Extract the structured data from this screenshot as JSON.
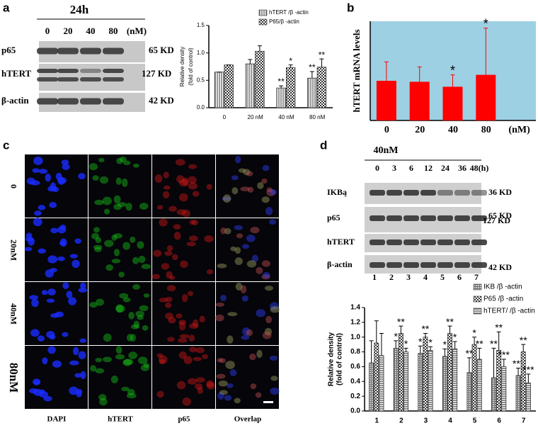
{
  "panel_labels": [
    "a",
    "b",
    "c",
    "d"
  ],
  "blot_a": {
    "time": "24h",
    "lanes": [
      "0",
      "20",
      "40",
      "80"
    ],
    "unit": "(nM)",
    "proteins": [
      "p65",
      "hTERT",
      "β-actin"
    ],
    "sizes": [
      "65 KD",
      "127 KD",
      "42 KD"
    ]
  },
  "imaging_c": {
    "rows": [
      "0",
      "20nM",
      "40nM",
      "80nM"
    ],
    "columns": [
      "DAPI",
      "hTERT",
      "p65",
      "Overlap"
    ]
  },
  "blot_d": {
    "dose": "40nM",
    "lanes": [
      "0",
      "3",
      "6",
      "12",
      "24",
      "36",
      "48(h)"
    ],
    "proteins": [
      "IKBą",
      "p65",
      "hTERT",
      "β-actin"
    ],
    "sizes": [
      "36 KD",
      "65 KD",
      "127 KD",
      "42 KD"
    ],
    "lane_numbers": [
      "1",
      "2",
      "3",
      "4",
      "5",
      "6",
      "7"
    ]
  },
  "chart_data": [
    {
      "type": "bar",
      "ylabel": [
        "Relative density",
        "(fold of control)"
      ],
      "categories": [
        "0",
        "20 nM",
        "40 nM",
        "80 nM"
      ],
      "ylim": [
        0,
        1.5
      ],
      "yticks": [
        {
          "value": 0,
          "label": "0.0"
        },
        {
          "value": 0.5,
          "label": "0.5"
        },
        {
          "value": 1,
          "label": "1.0"
        },
        {
          "value": 1.5,
          "label": "1.5"
        }
      ],
      "legend": "top-right",
      "series": [
        {
          "name": "hTERT /β -actin",
          "pattern": "vlines",
          "color": "#333333",
          "values": [
            0.65,
            0.8,
            0.36,
            0.54
          ],
          "errors": [
            0,
            0.08,
            0.04,
            0.12
          ],
          "annotations": [
            null,
            null,
            "**",
            "**"
          ]
        },
        {
          "name": "P65/β -actin",
          "pattern": "checker",
          "color": "#333333",
          "values": [
            0.78,
            1.03,
            0.73,
            0.74
          ],
          "errors": [
            0,
            0.1,
            0.05,
            0.15
          ],
          "annotations": [
            null,
            null,
            "*",
            "**"
          ]
        }
      ]
    },
    {
      "type": "bar",
      "ylabel": "hTERT mRNA  levels",
      "categories": [
        "0",
        "20",
        "40",
        "80"
      ],
      "unit": "(nM)",
      "ylim": [
        0,
        1
      ],
      "background": "#9dd0e3",
      "series": [
        {
          "color": "#ff0000",
          "values": [
            0.4,
            0.39,
            0.34,
            0.46
          ],
          "errors": [
            0.19,
            0.15,
            0.12,
            0.47
          ],
          "annotations": [
            null,
            null,
            "*",
            "*"
          ]
        }
      ]
    },
    {
      "type": "bar",
      "ylabel": [
        "Relative density",
        "(fold of control)"
      ],
      "categories": [
        "1",
        "2",
        "3",
        "4",
        "5",
        "6",
        "7"
      ],
      "ylim": [
        0,
        1.4
      ],
      "yticks": [
        {
          "value": 0,
          "label": "0.0"
        },
        {
          "value": 0.2,
          "label": "0.2"
        },
        {
          "value": 0.4,
          "label": "0.4"
        },
        {
          "value": 0.6,
          "label": "0.6"
        },
        {
          "value": 0.8,
          "label": "0.8"
        },
        {
          "value": 1,
          "label": "1.0"
        },
        {
          "value": 1.2,
          "label": "1.2"
        },
        {
          "value": 1.4,
          "label": "1.4"
        }
      ],
      "legend": "top-right",
      "series": [
        {
          "name": "IKB /β -actin",
          "pattern": "crossdense",
          "color": "#333333",
          "values": [
            0.65,
            0.85,
            0.78,
            0.74,
            0.52,
            0.45,
            0.48
          ],
          "errors": [
            0.3,
            0.1,
            0.1,
            0.1,
            0.2,
            0.4,
            0.1
          ],
          "annotations": [
            null,
            "*",
            "*",
            "*",
            "**",
            "**",
            "***"
          ]
        },
        {
          "name": "P65 /β -actin",
          "pattern": "checker",
          "color": "#333333",
          "values": [
            0.92,
            1.05,
            1.0,
            1.05,
            0.9,
            0.82,
            0.8
          ],
          "errors": [
            0.3,
            0.1,
            0.05,
            0.1,
            0.1,
            0.25,
            0.1
          ],
          "annotations": [
            null,
            "**",
            "**",
            "**",
            "*",
            "**",
            "**"
          ]
        },
        {
          "name": "hTERT/ /β -actin",
          "pattern": "hlines",
          "color": "#333333",
          "values": [
            0.75,
            0.8,
            0.82,
            0.84,
            0.7,
            0.6,
            0.38
          ],
          "errors": [
            0.3,
            0.05,
            0.05,
            0.1,
            0.15,
            0.1,
            0.12
          ],
          "annotations": [
            null,
            "*",
            "*",
            "*",
            "**",
            "***",
            "***"
          ]
        }
      ]
    }
  ]
}
